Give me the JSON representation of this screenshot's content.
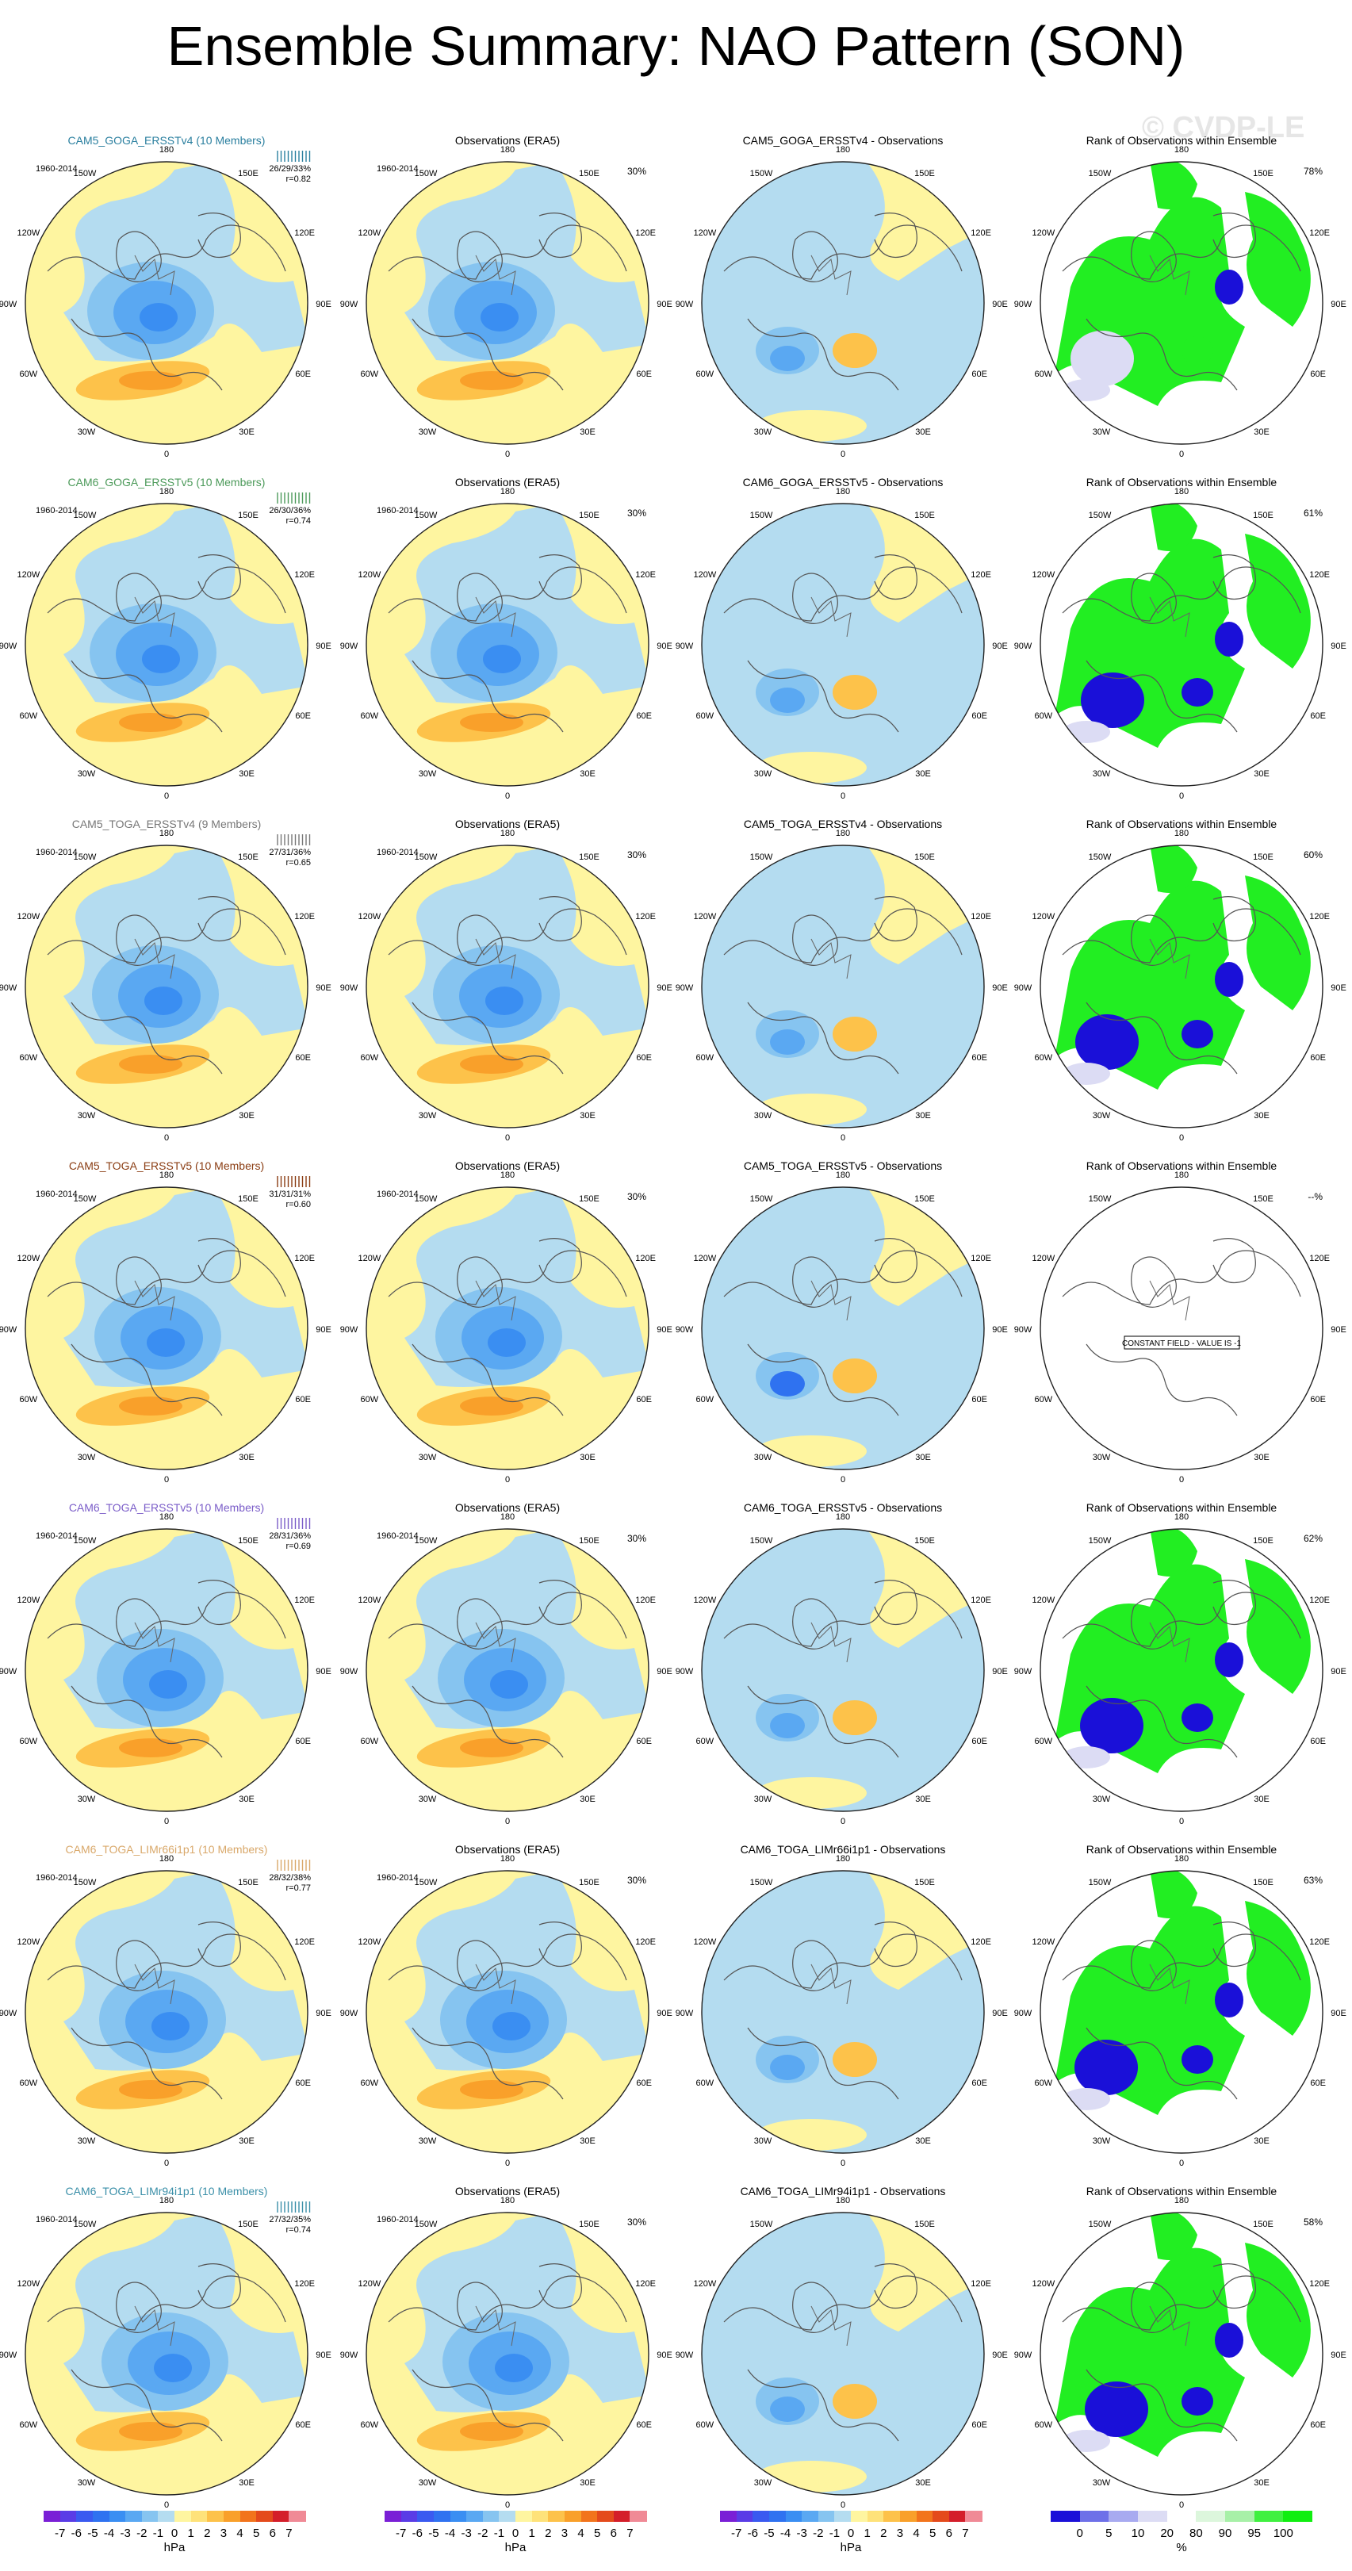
{
  "title": "Ensemble Summary: NAO Pattern (SON)",
  "watermark": "© CVDP-LE",
  "columns": {
    "obs_title": "Observations (ERA5)",
    "rank_title": "Rank of Observations within Ensemble"
  },
  "period": "1960-2014",
  "lon_labels": [
    "180",
    "150W",
    "150E",
    "120W",
    "120E",
    "90W",
    "90E",
    "60W",
    "60E",
    "30W",
    "30E",
    "0"
  ],
  "rows": [
    {
      "model": "CAM5_GOGA_ERSSTv4 (10 Members)",
      "diff": "CAM5_GOGA_ERSSTv4 - Observations",
      "color": "#2a7f9f",
      "stats": "26/29/33%",
      "r": "r=0.82",
      "obs_pct": "30%",
      "rank_pct": "78%",
      "constant": false
    },
    {
      "model": "CAM6_GOGA_ERSSTv5 (10 Members)",
      "diff": "CAM6_GOGA_ERSSTv5 - Observations",
      "color": "#4c9a5a",
      "stats": "26/30/36%",
      "r": "r=0.74",
      "obs_pct": "30%",
      "rank_pct": "61%",
      "constant": false
    },
    {
      "model": "CAM5_TOGA_ERSSTv4 (9 Members)",
      "diff": "CAM5_TOGA_ERSSTv4 - Observations",
      "color": "#777777",
      "stats": "27/31/36%",
      "r": "r=0.65",
      "obs_pct": "30%",
      "rank_pct": "60%",
      "constant": false
    },
    {
      "model": "CAM5_TOGA_ERSSTv5 (10 Members)",
      "diff": "CAM5_TOGA_ERSSTv5 - Observations",
      "color": "#8a3c12",
      "stats": "31/31/31%",
      "r": "r=0.60",
      "obs_pct": "30%",
      "rank_pct": "--%",
      "constant": true,
      "constant_text": "CONSTANT FIELD - VALUE IS -1"
    },
    {
      "model": "CAM6_TOGA_ERSSTv5 (10 Members)",
      "diff": "CAM6_TOGA_ERSSTv5 - Observations",
      "color": "#7a5cc8",
      "stats": "28/31/36%",
      "r": "r=0.69",
      "obs_pct": "30%",
      "rank_pct": "62%",
      "constant": false
    },
    {
      "model": "CAM6_TOGA_LIMr66i1p1 (10 Members)",
      "diff": "CAM6_TOGA_LIMr66i1p1 - Observations",
      "color": "#d9a86a",
      "stats": "28/32/38%",
      "r": "r=0.77",
      "obs_pct": "30%",
      "rank_pct": "63%",
      "constant": false
    },
    {
      "model": "CAM6_TOGA_LIMr94i1p1 (10 Members)",
      "diff": "CAM6_TOGA_LIMr94i1p1 - Observations",
      "color": "#3a8fa8",
      "stats": "27/32/35%",
      "r": "r=0.74",
      "obs_pct": "30%",
      "rank_pct": "58%",
      "constant": false
    }
  ],
  "colorbars": {
    "hpa": {
      "ticks": [
        "-7",
        "-6",
        "-5",
        "-4",
        "-3",
        "-2",
        "-1",
        "0",
        "1",
        "2",
        "3",
        "4",
        "5",
        "6",
        "7"
      ],
      "unit": "hPa",
      "colors": [
        "#7a1fd6",
        "#5a3ce6",
        "#3a5af0",
        "#2f72f0",
        "#3a8ef2",
        "#5aa8f2",
        "#86c4f0",
        "#b4dcf0",
        "#fef5a0",
        "#fee27a",
        "#fdc24a",
        "#f9a02a",
        "#f2741c",
        "#e44a1c",
        "#d41e2a",
        "#f08a96"
      ]
    },
    "pct": {
      "ticks": [
        "0",
        "5",
        "10",
        "20",
        "80",
        "90",
        "95",
        "100"
      ],
      "unit": "%",
      "colors": [
        "#1a10d8",
        "#6e70e8",
        "#a8aaf0",
        "#dcdcf4",
        "#ffffff",
        "#dcf6dc",
        "#a8f0a8",
        "#40f040",
        "#10ee10"
      ]
    }
  }
}
